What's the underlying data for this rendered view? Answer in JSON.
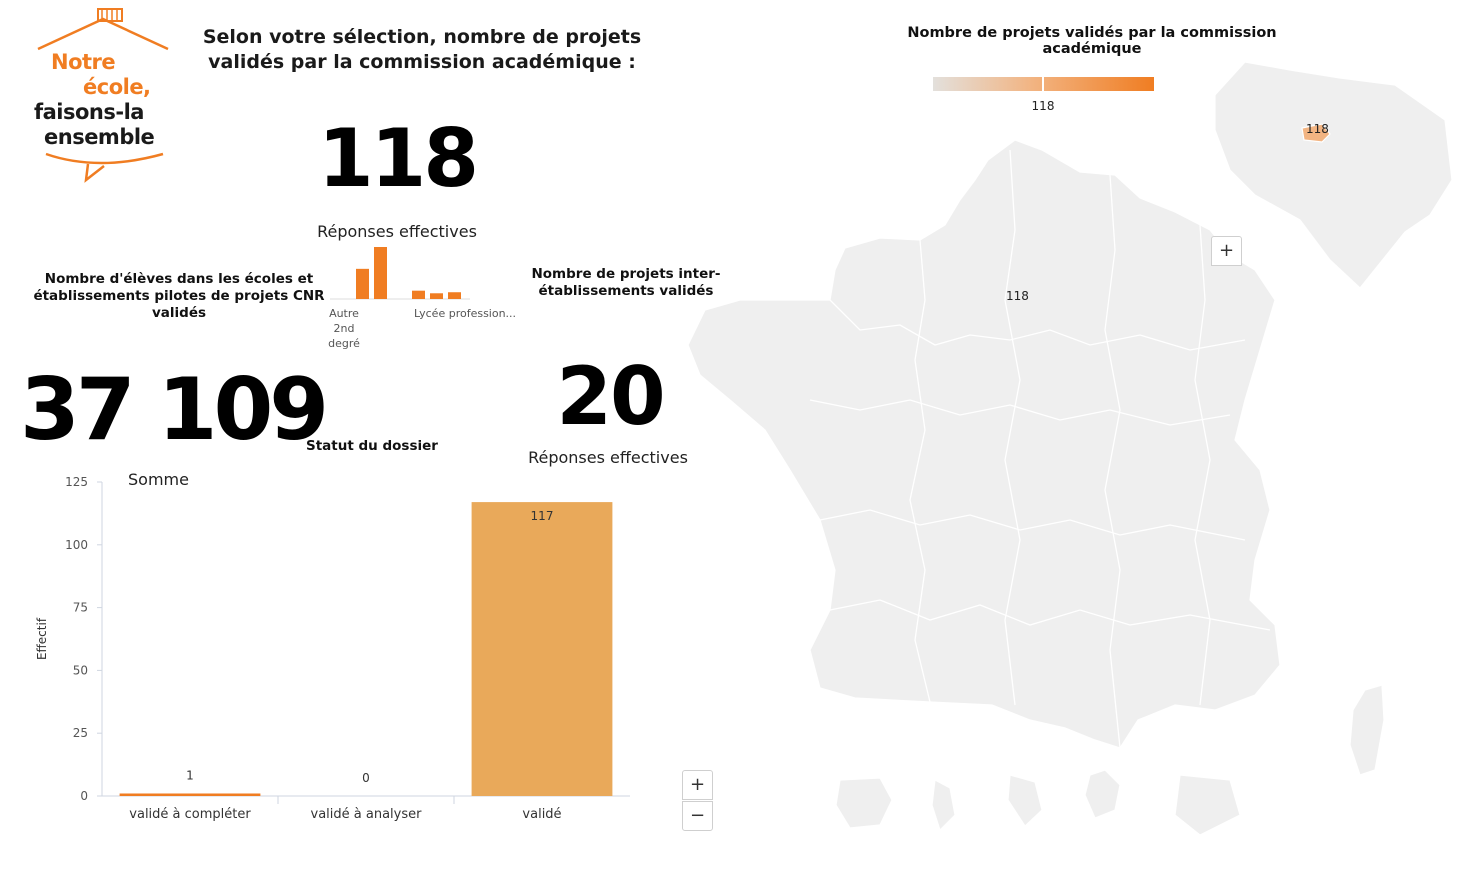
{
  "logo": {
    "line1": "Notre",
    "line2": "école,",
    "line3": "faisons-la",
    "line4": "ensemble",
    "colors": {
      "orange": "#f07d22",
      "dark": "#1a1a1a"
    }
  },
  "selection": {
    "title": "Selon votre sélection, nombre de projets validés par la commission académique :",
    "value": "118",
    "subtitle": "Réponses effectives"
  },
  "eleves": {
    "label": "Nombre d'élèves dans les écoles et établissements pilotes de projets CNR validés",
    "value": "37 109"
  },
  "inter": {
    "label": "Nombre de projets inter-établissements validés",
    "value": "20",
    "subtitle": "Réponses effectives"
  },
  "mini_chart": {
    "tick_labels": [
      "Autre 2nd degré",
      "Lycée profession..."
    ],
    "relative_values": [
      0.58,
      1.0,
      0.16,
      0.11,
      0.13
    ]
  },
  "statut": {
    "label": "Statut du dossier"
  },
  "chart_data": {
    "type": "bar",
    "title": "Somme",
    "ylabel": "Effectif",
    "xlabel": "",
    "categories": [
      "validé à compléter",
      "validé à analyser",
      "validé"
    ],
    "values": [
      1,
      0,
      117
    ],
    "data_labels": [
      "1",
      "0",
      "117"
    ],
    "ylim": [
      0,
      125
    ],
    "yticks": [
      0,
      25,
      50,
      75,
      100,
      125
    ],
    "grid": false,
    "colors": [
      "#f07d22",
      "#f07d22",
      "#e9a95a"
    ]
  },
  "map": {
    "title": "Nombre de projets validés par la commission académique",
    "legend_value": "118",
    "main_label": "118",
    "inset_label": "118",
    "zoom_in": "+",
    "zoom_out": "−",
    "colors": {
      "region": "#efefef",
      "border": "#ffffff",
      "highlight": "#f2b482"
    }
  }
}
